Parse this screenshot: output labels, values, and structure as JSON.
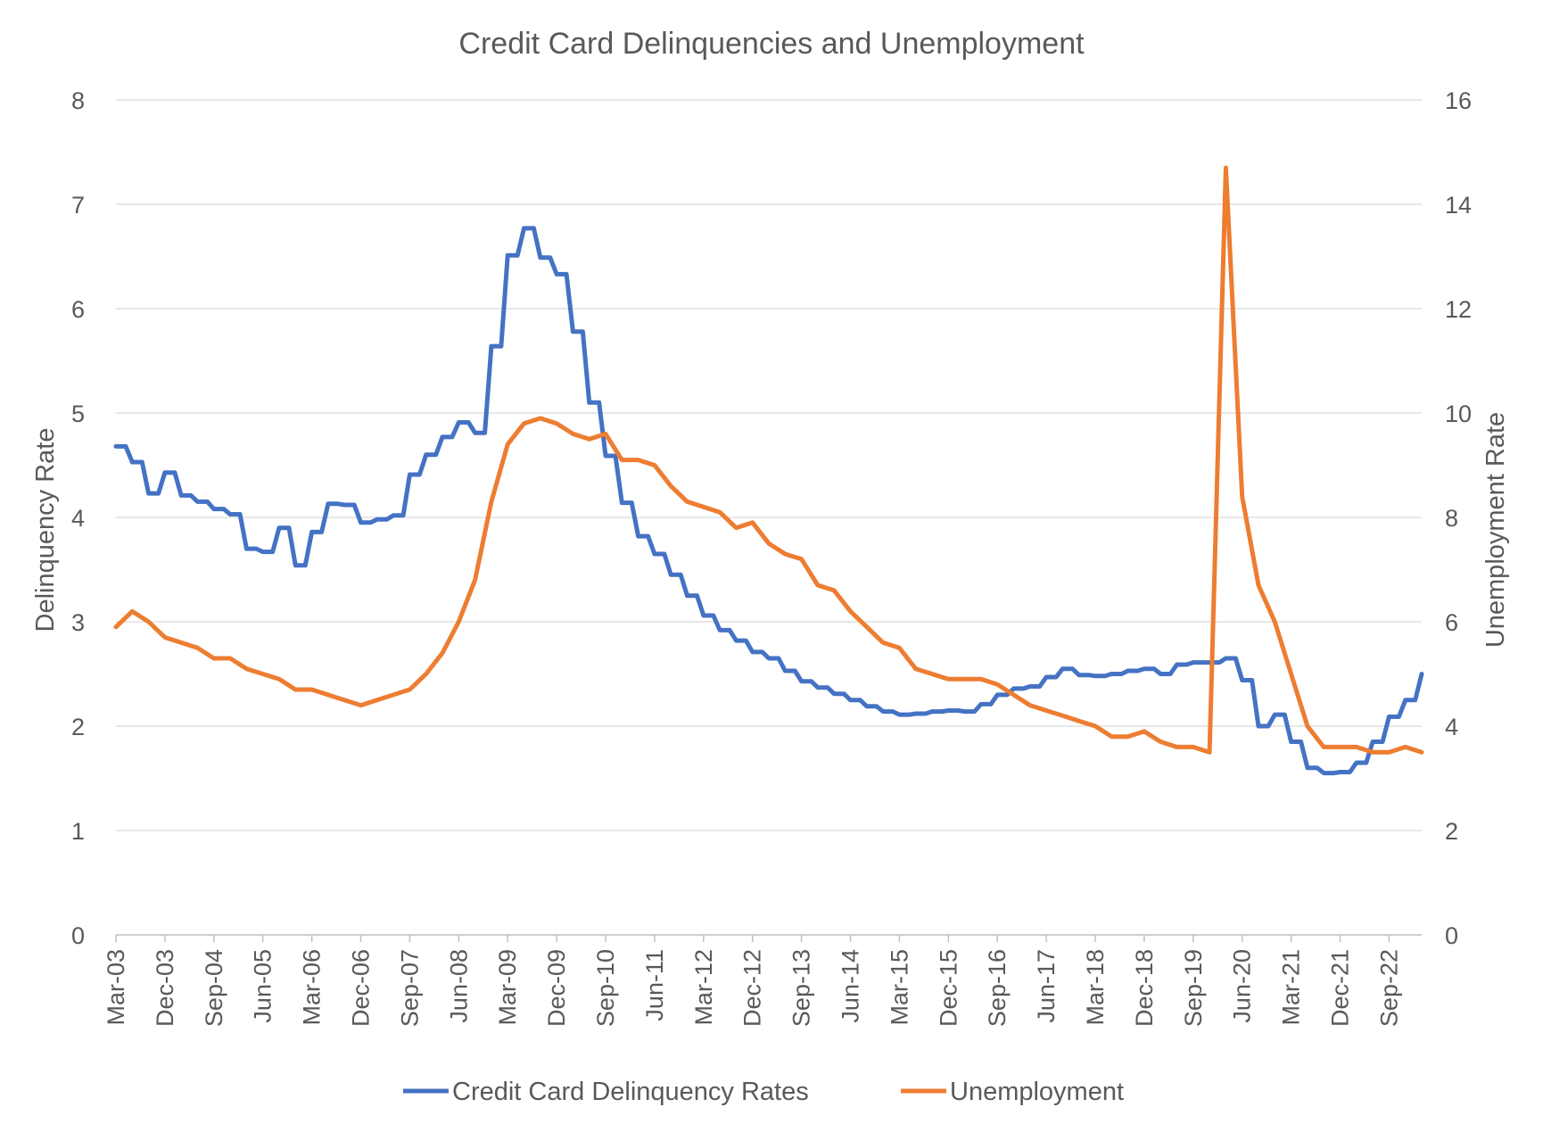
{
  "chart_data": {
    "type": "line",
    "title": "Credit Card Delinquencies and Unemployment",
    "ylabel": "Delinquency Rate",
    "y2label": "Unemployment Rate",
    "ylim": [
      0,
      8
    ],
    "y2lim": [
      0,
      16
    ],
    "y_ticks": [
      "0",
      "1",
      "2",
      "3",
      "4",
      "5",
      "6",
      "7",
      "8"
    ],
    "y2_ticks": [
      "0",
      "2",
      "4",
      "6",
      "8",
      "10",
      "12",
      "14",
      "16"
    ],
    "x_ticks": [
      "Mar-03",
      "Dec-03",
      "Sep-04",
      "Jun-05",
      "Mar-06",
      "Dec-06",
      "Sep-07",
      "Jun-08",
      "Mar-09",
      "Dec-09",
      "Sep-10",
      "Jun-11",
      "Mar-12",
      "Dec-12",
      "Sep-13",
      "Jun-14",
      "Mar-15",
      "Dec-15",
      "Sep-16",
      "Jun-17",
      "Mar-18",
      "Dec-18",
      "Sep-19",
      "Jun-20",
      "Mar-21",
      "Dec-21",
      "Sep-22"
    ],
    "x_start": "Mar-03",
    "x_end": "Mar-23",
    "grid": true,
    "legend_position": "bottom",
    "series": [
      {
        "name": "Credit Card Delinquency Rates",
        "axis": "left",
        "color": "#4472c4",
        "frequency": "quarterly",
        "values": [
          4.68,
          4.53,
          4.23,
          4.43,
          4.21,
          4.15,
          4.08,
          4.03,
          3.7,
          3.67,
          3.9,
          3.54,
          3.86,
          4.13,
          4.12,
          3.95,
          3.98,
          4.02,
          4.41,
          4.6,
          4.77,
          4.91,
          4.81,
          5.64,
          6.51,
          6.77,
          6.49,
          6.33,
          5.78,
          5.1,
          4.59,
          4.14,
          3.82,
          3.65,
          3.45,
          3.25,
          3.06,
          2.92,
          2.82,
          2.71,
          2.65,
          2.53,
          2.43,
          2.37,
          2.31,
          2.25,
          2.19,
          2.14,
          2.11,
          2.12,
          2.14,
          2.15,
          2.14,
          2.21,
          2.3,
          2.36,
          2.38,
          2.47,
          2.55,
          2.49,
          2.48,
          2.5,
          2.53,
          2.55,
          2.5,
          2.59,
          2.61,
          2.61,
          2.65,
          2.44,
          2.0,
          2.11,
          1.85,
          1.6,
          1.55,
          1.56,
          1.65,
          1.85,
          2.09,
          2.25,
          2.5
        ]
      },
      {
        "name": "Unemployment",
        "axis": "right",
        "color": "#ed7d31",
        "frequency": "quarterly",
        "values": [
          5.9,
          6.2,
          6.0,
          5.7,
          5.6,
          5.5,
          5.3,
          5.3,
          5.1,
          5.0,
          4.9,
          4.7,
          4.7,
          4.6,
          4.5,
          4.4,
          4.5,
          4.6,
          4.7,
          5.0,
          5.4,
          6.0,
          6.8,
          8.3,
          9.4,
          9.8,
          9.9,
          9.8,
          9.6,
          9.5,
          9.6,
          9.1,
          9.1,
          9.0,
          8.6,
          8.3,
          8.2,
          8.1,
          7.8,
          7.9,
          7.5,
          7.3,
          7.2,
          6.7,
          6.6,
          6.2,
          5.9,
          5.6,
          5.5,
          5.1,
          5.0,
          4.9,
          4.9,
          4.9,
          4.8,
          4.6,
          4.4,
          4.3,
          4.2,
          4.1,
          4.0,
          3.8,
          3.8,
          3.9,
          3.7,
          3.6,
          3.6,
          3.5,
          14.7,
          8.4,
          6.7,
          6.0,
          5.0,
          4.0,
          3.6,
          3.6,
          3.6,
          3.5,
          3.5,
          3.6,
          3.5
        ]
      }
    ]
  }
}
